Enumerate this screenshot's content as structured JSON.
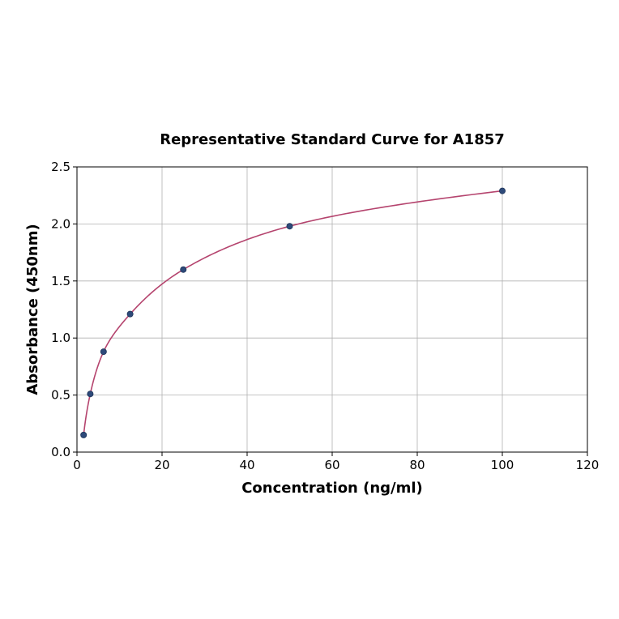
{
  "chart_data": {
    "type": "scatter",
    "title": "Representative Standard Curve for A1857",
    "xlabel": "Concentration (ng/ml)",
    "ylabel": "Absorbance (450nm)",
    "xlim": [
      0,
      120
    ],
    "ylim": [
      0,
      2.5
    ],
    "xticks": [
      "0",
      "20",
      "40",
      "60",
      "80",
      "100",
      "120"
    ],
    "yticks": [
      "0.0",
      "0.5",
      "1.0",
      "1.5",
      "2.0",
      "2.5"
    ],
    "grid": true,
    "legend": null,
    "series": [
      {
        "name": "Standard points",
        "type": "scatter",
        "color": "#2e4a7a",
        "x": [
          1.5625,
          3.125,
          6.25,
          12.5,
          25,
          50,
          100
        ],
        "y": [
          0.15,
          0.51,
          0.88,
          1.21,
          1.6,
          1.98,
          2.29
        ]
      },
      {
        "name": "Fitted curve",
        "type": "line",
        "color": "#b5446e"
      }
    ]
  }
}
